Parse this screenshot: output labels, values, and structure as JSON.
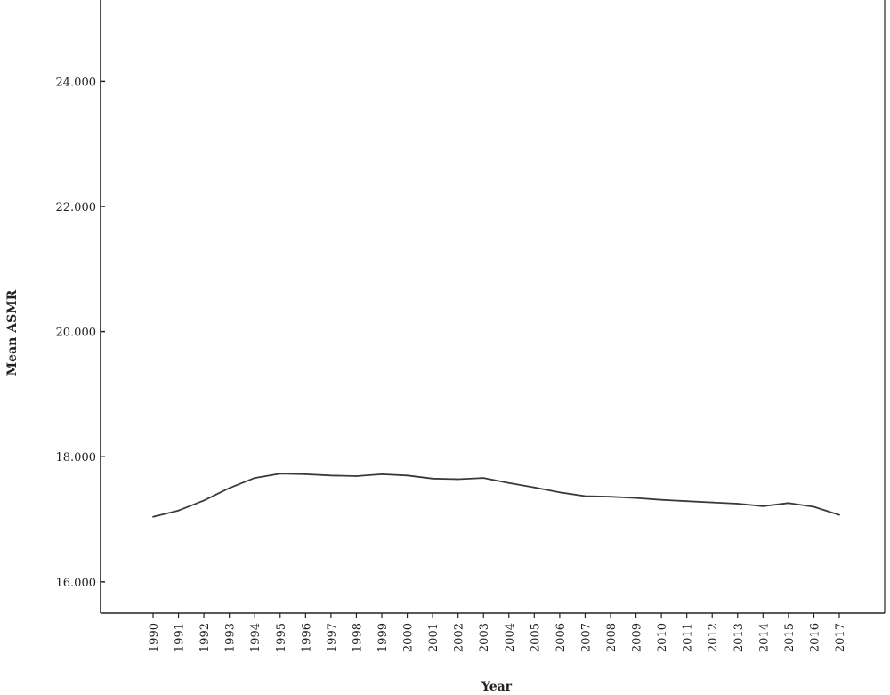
{
  "chart_data": {
    "type": "line",
    "title": "",
    "xlabel": "Year",
    "ylabel": "Mean ASMR",
    "ylim": [
      15.5,
      25.3
    ],
    "yticks": [
      16,
      18,
      20,
      22,
      24
    ],
    "ytick_labels": [
      "16.000",
      "18.000",
      "20.000",
      "22.000",
      "24.000"
    ],
    "grid": false,
    "legend": "none",
    "line_color": "#3a3a3a",
    "x": [
      "1990",
      "1991",
      "1992",
      "1993",
      "1994",
      "1995",
      "1996",
      "1997",
      "1998",
      "1999",
      "2000",
      "2001",
      "2002",
      "2003",
      "2004",
      "2005",
      "2006",
      "2007",
      "2008",
      "2009",
      "2010",
      "2011",
      "2012",
      "2013",
      "2014",
      "2015",
      "2016",
      "2017"
    ],
    "series": [
      {
        "values": [
          17.04,
          17.14,
          17.3,
          17.5,
          17.66,
          17.73,
          17.72,
          17.7,
          17.69,
          17.72,
          17.7,
          17.65,
          17.64,
          17.66,
          17.58,
          17.51,
          17.43,
          17.37,
          17.36,
          17.34,
          17.31,
          17.29,
          17.27,
          17.25,
          17.21,
          17.26,
          17.2,
          17.07
        ]
      }
    ]
  }
}
